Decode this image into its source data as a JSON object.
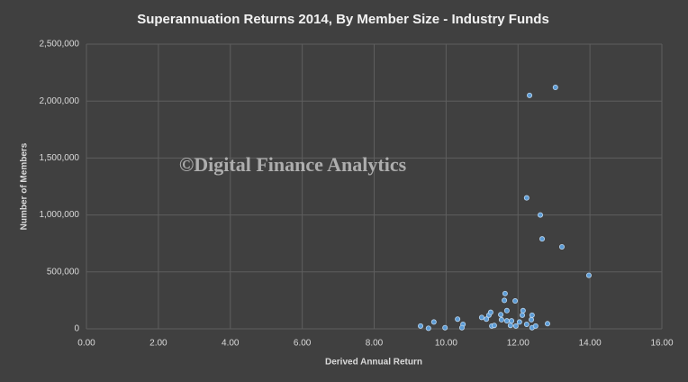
{
  "chart_data": {
    "type": "scatter",
    "title": "Superannuation Returns 2014, By Member Size - Industry Funds",
    "watermark": "©Digital Finance Analytics",
    "x_label": "Derived Annual Return",
    "y_label": "Number of Members",
    "color": "#5b9bd5",
    "grid": true,
    "xlim": [
      0,
      16
    ],
    "ylim": [
      0,
      2500000
    ],
    "xticks": [
      {
        "value": 0,
        "label": "0.00"
      },
      {
        "value": 2,
        "label": "2.00"
      },
      {
        "value": 4,
        "label": "4.00"
      },
      {
        "value": 6,
        "label": "6.00"
      },
      {
        "value": 8,
        "label": "8.00"
      },
      {
        "value": 10,
        "label": "10.00"
      },
      {
        "value": 12,
        "label": "12.00"
      },
      {
        "value": 14,
        "label": "14.00"
      },
      {
        "value": 16,
        "label": "16.00"
      }
    ],
    "yticks": [
      0,
      {
        "value": 500000,
        "label": "500,000"
      },
      {
        "value": 1000000,
        "label": "1,000,000"
      },
      {
        "value": 1500000,
        "label": "1,500,000"
      },
      {
        "value": 2000000,
        "label": "2,000,000"
      },
      {
        "value": 2500000,
        "label": "2,500,000"
      }
    ],
    "x": [
      12.32,
      13.04,
      12.24,
      12.62,
      12.67,
      13.22,
      13.97,
      11.64,
      11.62,
      11.92,
      9.29,
      9.51,
      9.66,
      9.97,
      10.32,
      10.47,
      10.44,
      10.99,
      11.12,
      11.19,
      11.24,
      11.27,
      11.34,
      11.52,
      11.54,
      11.69,
      11.69,
      11.79,
      11.82,
      11.94,
      12.04,
      12.12,
      12.14,
      12.24,
      12.37,
      12.39,
      12.39,
      12.49,
      12.82
    ],
    "values": [
      2050000,
      2120000,
      1150000,
      1000000,
      790000,
      720000,
      470000,
      310000,
      250000,
      245000,
      25000,
      5000,
      60000,
      10000,
      85000,
      40000,
      10000,
      100000,
      85000,
      120000,
      145000,
      25000,
      30000,
      125000,
      80000,
      160000,
      70000,
      30000,
      70000,
      25000,
      60000,
      120000,
      160000,
      40000,
      80000,
      120000,
      10000,
      25000,
      45000
    ]
  }
}
